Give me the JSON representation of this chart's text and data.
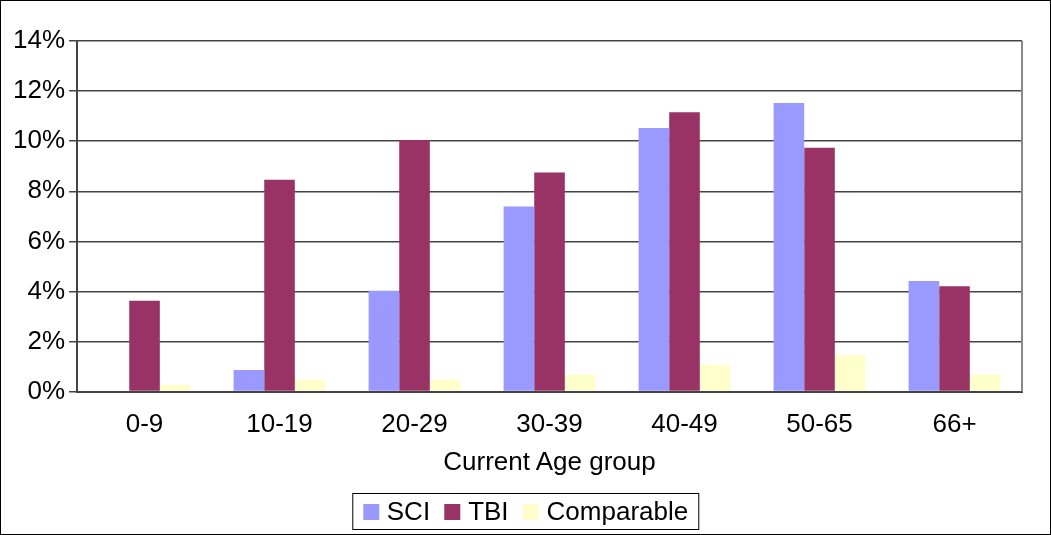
{
  "chart_data": {
    "type": "bar",
    "xlabel": "Current Age group",
    "categories": [
      "0-9",
      "10-19",
      "20-29",
      "30-39",
      "40-49",
      "50-65",
      "66+"
    ],
    "series": [
      {
        "name": "SCI",
        "color": "#9999ff",
        "values": [
          0,
          0.86,
          4.03,
          7.39,
          10.53,
          11.52,
          4.42
        ]
      },
      {
        "name": "TBI",
        "color": "#993366",
        "values": [
          3.63,
          8.46,
          10.05,
          8.75,
          11.15,
          9.74,
          4.21
        ]
      },
      {
        "name": "Comparable",
        "color": "#ffffcc",
        "values": [
          0.27,
          0.47,
          0.47,
          0.68,
          1.07,
          1.46,
          0.68
        ]
      }
    ],
    "ylim": [
      0,
      14
    ],
    "yticks": [
      {
        "value": 0,
        "label": "0%"
      },
      {
        "value": 2,
        "label": "2%"
      },
      {
        "value": 4,
        "label": "4%"
      },
      {
        "value": 6,
        "label": "6%"
      },
      {
        "value": 8,
        "label": "8%"
      },
      {
        "value": 10,
        "label": "10%"
      },
      {
        "value": 12,
        "label": "12%"
      },
      {
        "value": 14,
        "label": "14%"
      }
    ],
    "grid": "y",
    "legend": "bottom"
  }
}
